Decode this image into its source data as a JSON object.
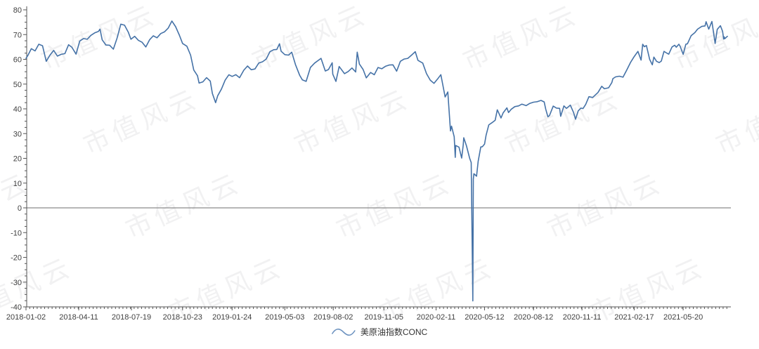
{
  "watermark": {
    "text": "市值风云"
  },
  "legend": {
    "label": "美原油指数CONC"
  },
  "colors": {
    "line": "#4572A7",
    "zero_line": "#8a8a8a",
    "axis": "#555555",
    "tick_label": "#404040",
    "legend_text": "#333333",
    "background": "#ffffff"
  },
  "chart_data": {
    "type": "line",
    "title": "",
    "ylim": [
      -40,
      80
    ],
    "y_ticks": [
      80,
      70,
      60,
      50,
      40,
      30,
      20,
      10,
      0,
      -10,
      -20,
      -30,
      -40
    ],
    "y_minor_step": 2.5,
    "x_ticks": [
      "2018-01-02",
      "2018-04-11",
      "2018-07-19",
      "2018-10-23",
      "2019-01-24",
      "2019-05-03",
      "2019-08-02",
      "2019-11-05",
      "2020-02-11",
      "2020-05-12",
      "2020-08-12",
      "2020-11-11",
      "2021-02-17",
      "2021-05-20"
    ],
    "grid": "zero-line-only",
    "legend_position": "bottom-center",
    "series": [
      {
        "name": "美原油指数CONC",
        "color": "#4572A7",
        "points": [
          [
            "2018-01-02",
            60.4
          ],
          [
            "2018-01-05",
            61.4
          ],
          [
            "2018-01-12",
            64.3
          ],
          [
            "2018-01-19",
            63.4
          ],
          [
            "2018-01-26",
            66.1
          ],
          [
            "2018-02-02",
            65.5
          ],
          [
            "2018-02-09",
            59.2
          ],
          [
            "2018-02-16",
            61.7
          ],
          [
            "2018-02-23",
            63.6
          ],
          [
            "2018-03-02",
            61.3
          ],
          [
            "2018-03-09",
            62.0
          ],
          [
            "2018-03-16",
            62.3
          ],
          [
            "2018-03-23",
            65.9
          ],
          [
            "2018-03-29",
            64.9
          ],
          [
            "2018-04-06",
            62.1
          ],
          [
            "2018-04-13",
            67.4
          ],
          [
            "2018-04-20",
            68.4
          ],
          [
            "2018-04-27",
            68.1
          ],
          [
            "2018-05-04",
            69.7
          ],
          [
            "2018-05-11",
            70.7
          ],
          [
            "2018-05-18",
            71.3
          ],
          [
            "2018-05-21",
            72.2
          ],
          [
            "2018-05-25",
            67.9
          ],
          [
            "2018-06-01",
            65.8
          ],
          [
            "2018-06-08",
            65.7
          ],
          [
            "2018-06-15",
            64.1
          ],
          [
            "2018-06-22",
            68.6
          ],
          [
            "2018-06-29",
            74.2
          ],
          [
            "2018-07-06",
            73.8
          ],
          [
            "2018-07-13",
            71.0
          ],
          [
            "2018-07-18",
            68.1
          ],
          [
            "2018-07-25",
            69.3
          ],
          [
            "2018-08-01",
            67.7
          ],
          [
            "2018-08-08",
            66.9
          ],
          [
            "2018-08-15",
            65.0
          ],
          [
            "2018-08-22",
            67.9
          ],
          [
            "2018-08-29",
            69.5
          ],
          [
            "2018-09-05",
            68.7
          ],
          [
            "2018-09-12",
            70.4
          ],
          [
            "2018-09-19",
            71.1
          ],
          [
            "2018-09-26",
            72.6
          ],
          [
            "2018-10-03",
            75.5
          ],
          [
            "2018-10-10",
            73.2
          ],
          [
            "2018-10-17",
            69.8
          ],
          [
            "2018-10-23",
            66.4
          ],
          [
            "2018-10-31",
            65.3
          ],
          [
            "2018-11-07",
            61.7
          ],
          [
            "2018-11-13",
            55.7
          ],
          [
            "2018-11-20",
            53.4
          ],
          [
            "2018-11-23",
            50.4
          ],
          [
            "2018-11-30",
            50.9
          ],
          [
            "2018-12-07",
            52.6
          ],
          [
            "2018-12-14",
            51.2
          ],
          [
            "2018-12-18",
            46.2
          ],
          [
            "2018-12-24",
            42.5
          ],
          [
            "2018-12-28",
            45.3
          ],
          [
            "2019-01-04",
            48.0
          ],
          [
            "2019-01-11",
            51.6
          ],
          [
            "2019-01-18",
            53.8
          ],
          [
            "2019-01-24",
            53.1
          ],
          [
            "2019-01-31",
            53.8
          ],
          [
            "2019-02-07",
            52.6
          ],
          [
            "2019-02-15",
            55.6
          ],
          [
            "2019-02-22",
            57.3
          ],
          [
            "2019-03-01",
            55.8
          ],
          [
            "2019-03-08",
            56.1
          ],
          [
            "2019-03-15",
            58.5
          ],
          [
            "2019-03-22",
            59.0
          ],
          [
            "2019-03-29",
            60.1
          ],
          [
            "2019-04-05",
            63.1
          ],
          [
            "2019-04-12",
            63.9
          ],
          [
            "2019-04-18",
            64.0
          ],
          [
            "2019-04-23",
            66.3
          ],
          [
            "2019-04-26",
            63.3
          ],
          [
            "2019-05-03",
            61.9
          ],
          [
            "2019-05-10",
            61.7
          ],
          [
            "2019-05-16",
            62.9
          ],
          [
            "2019-05-23",
            57.9
          ],
          [
            "2019-05-31",
            53.5
          ],
          [
            "2019-06-05",
            51.7
          ],
          [
            "2019-06-12",
            51.1
          ],
          [
            "2019-06-20",
            56.7
          ],
          [
            "2019-06-28",
            58.5
          ],
          [
            "2019-07-10",
            60.4
          ],
          [
            "2019-07-18",
            55.3
          ],
          [
            "2019-07-24",
            55.9
          ],
          [
            "2019-07-31",
            58.6
          ],
          [
            "2019-08-01",
            54.0
          ],
          [
            "2019-08-07",
            51.1
          ],
          [
            "2019-08-13",
            57.1
          ],
          [
            "2019-08-23",
            54.2
          ],
          [
            "2019-08-30",
            55.1
          ],
          [
            "2019-09-06",
            56.5
          ],
          [
            "2019-09-13",
            54.9
          ],
          [
            "2019-09-16",
            62.9
          ],
          [
            "2019-09-20",
            58.1
          ],
          [
            "2019-09-27",
            55.9
          ],
          [
            "2019-10-03",
            52.5
          ],
          [
            "2019-10-11",
            54.7
          ],
          [
            "2019-10-18",
            53.8
          ],
          [
            "2019-10-25",
            56.7
          ],
          [
            "2019-11-01",
            56.2
          ],
          [
            "2019-11-08",
            57.2
          ],
          [
            "2019-11-15",
            57.7
          ],
          [
            "2019-11-22",
            57.8
          ],
          [
            "2019-11-29",
            55.2
          ],
          [
            "2019-12-06",
            59.2
          ],
          [
            "2019-12-13",
            60.1
          ],
          [
            "2019-12-20",
            60.4
          ],
          [
            "2019-12-27",
            61.7
          ],
          [
            "2020-01-03",
            63.1
          ],
          [
            "2020-01-08",
            59.6
          ],
          [
            "2020-01-17",
            58.5
          ],
          [
            "2020-01-24",
            54.2
          ],
          [
            "2020-01-31",
            51.6
          ],
          [
            "2020-02-07",
            50.3
          ],
          [
            "2020-02-14",
            52.1
          ],
          [
            "2020-02-20",
            53.8
          ],
          [
            "2020-02-28",
            44.8
          ],
          [
            "2020-03-04",
            46.8
          ],
          [
            "2020-03-09",
            31.1
          ],
          [
            "2020-03-11",
            33.0
          ],
          [
            "2020-03-16",
            28.7
          ],
          [
            "2020-03-18",
            20.4
          ],
          [
            "2020-03-19",
            25.2
          ],
          [
            "2020-03-25",
            24.5
          ],
          [
            "2020-03-30",
            20.1
          ],
          [
            "2020-04-02",
            25.3
          ],
          [
            "2020-04-03",
            28.3
          ],
          [
            "2020-04-08",
            25.1
          ],
          [
            "2020-04-14",
            20.1
          ],
          [
            "2020-04-17",
            18.3
          ],
          [
            "2020-04-20",
            -37.6
          ],
          [
            "2020-04-21",
            11.6
          ],
          [
            "2020-04-22",
            13.8
          ],
          [
            "2020-04-27",
            12.8
          ],
          [
            "2020-04-30",
            18.8
          ],
          [
            "2020-05-05",
            24.6
          ],
          [
            "2020-05-08",
            24.7
          ],
          [
            "2020-05-12",
            25.8
          ],
          [
            "2020-05-15",
            29.4
          ],
          [
            "2020-05-20",
            33.5
          ],
          [
            "2020-05-26",
            34.4
          ],
          [
            "2020-06-01",
            35.4
          ],
          [
            "2020-06-05",
            39.6
          ],
          [
            "2020-06-08",
            38.2
          ],
          [
            "2020-06-12",
            36.3
          ],
          [
            "2020-06-16",
            38.4
          ],
          [
            "2020-06-23",
            40.4
          ],
          [
            "2020-06-26",
            38.5
          ],
          [
            "2020-07-01",
            39.8
          ],
          [
            "2020-07-08",
            40.9
          ],
          [
            "2020-07-15",
            41.2
          ],
          [
            "2020-07-21",
            41.9
          ],
          [
            "2020-07-29",
            41.3
          ],
          [
            "2020-08-05",
            42.2
          ],
          [
            "2020-08-12",
            42.7
          ],
          [
            "2020-08-19",
            42.9
          ],
          [
            "2020-08-26",
            43.4
          ],
          [
            "2020-09-01",
            42.8
          ],
          [
            "2020-09-04",
            39.8
          ],
          [
            "2020-09-08",
            36.8
          ],
          [
            "2020-09-11",
            37.3
          ],
          [
            "2020-09-18",
            41.1
          ],
          [
            "2020-09-24",
            40.3
          ],
          [
            "2020-09-30",
            40.2
          ],
          [
            "2020-10-02",
            37.0
          ],
          [
            "2020-10-08",
            41.2
          ],
          [
            "2020-10-13",
            40.2
          ],
          [
            "2020-10-20",
            41.5
          ],
          [
            "2020-10-26",
            38.6
          ],
          [
            "2020-10-30",
            35.8
          ],
          [
            "2020-11-04",
            39.2
          ],
          [
            "2020-11-09",
            40.3
          ],
          [
            "2020-11-13",
            40.1
          ],
          [
            "2020-11-18",
            41.8
          ],
          [
            "2020-11-24",
            44.9
          ],
          [
            "2020-12-01",
            44.6
          ],
          [
            "2020-12-07",
            45.8
          ],
          [
            "2020-12-11",
            46.6
          ],
          [
            "2020-12-18",
            49.1
          ],
          [
            "2020-12-23",
            48.1
          ],
          [
            "2020-12-31",
            48.5
          ],
          [
            "2021-01-06",
            50.6
          ],
          [
            "2021-01-08",
            52.2
          ],
          [
            "2021-01-13",
            52.9
          ],
          [
            "2021-01-20",
            53.2
          ],
          [
            "2021-01-27",
            52.8
          ],
          [
            "2021-02-03",
            55.7
          ],
          [
            "2021-02-10",
            58.7
          ],
          [
            "2021-02-17",
            61.1
          ],
          [
            "2021-02-24",
            63.2
          ],
          [
            "2021-03-02",
            59.7
          ],
          [
            "2021-03-05",
            66.1
          ],
          [
            "2021-03-08",
            65.1
          ],
          [
            "2021-03-12",
            65.6
          ],
          [
            "2021-03-18",
            60.0
          ],
          [
            "2021-03-23",
            57.8
          ],
          [
            "2021-03-26",
            60.9
          ],
          [
            "2021-03-31",
            59.2
          ],
          [
            "2021-04-05",
            58.7
          ],
          [
            "2021-04-09",
            59.3
          ],
          [
            "2021-04-14",
            63.2
          ],
          [
            "2021-04-20",
            62.4
          ],
          [
            "2021-04-23",
            62.1
          ],
          [
            "2021-04-29",
            65.0
          ],
          [
            "2021-05-04",
            65.7
          ],
          [
            "2021-05-07",
            64.9
          ],
          [
            "2021-05-12",
            66.1
          ],
          [
            "2021-05-14",
            65.4
          ],
          [
            "2021-05-20",
            62.0
          ],
          [
            "2021-05-25",
            66.1
          ],
          [
            "2021-05-28",
            66.3
          ],
          [
            "2021-06-04",
            69.6
          ],
          [
            "2021-06-11",
            70.8
          ],
          [
            "2021-06-16",
            72.2
          ],
          [
            "2021-06-24",
            73.3
          ],
          [
            "2021-06-30",
            73.5
          ],
          [
            "2021-07-02",
            75.2
          ],
          [
            "2021-07-07",
            72.2
          ],
          [
            "2021-07-13",
            75.3
          ],
          [
            "2021-07-19",
            66.4
          ],
          [
            "2021-07-23",
            72.1
          ],
          [
            "2021-07-29",
            73.6
          ],
          [
            "2021-08-02",
            71.3
          ],
          [
            "2021-08-04",
            68.2
          ],
          [
            "2021-08-05",
            69.1
          ],
          [
            "2021-08-06",
            68.3
          ],
          [
            "2021-08-11",
            69.3
          ]
        ]
      }
    ]
  }
}
